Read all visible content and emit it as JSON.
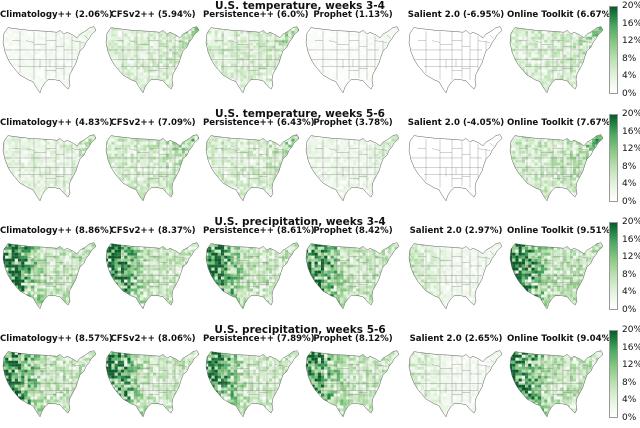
{
  "colors": {
    "low": "#ffffff",
    "high": "#0b5a2a",
    "border": "#7a7a7a"
  },
  "colorbar": {
    "ticks": [
      "20%",
      "16%",
      "12%",
      "8%",
      "4%",
      "0%"
    ]
  },
  "chart_data": [
    {
      "type": "heatmap",
      "title": "U.S. temperature,  weeks 3-4",
      "panels": [
        {
          "label": "Climatology++ (2.06%)",
          "value": 2.06
        },
        {
          "label": "CFSv2++ (5.94%)",
          "value": 5.94
        },
        {
          "label": "Persistence++ (6.0%)",
          "value": 6.0
        },
        {
          "label": "Prophet (1.13%)",
          "value": 1.13
        },
        {
          "label": "Salient 2.0 (-6.95%)",
          "value": -6.95
        },
        {
          "label": "Online Toolkit (6.67%)",
          "value": 6.67
        }
      ],
      "colorbar_range": [
        0,
        20
      ]
    },
    {
      "type": "heatmap",
      "title": "U.S. temperature,  weeks 5-6",
      "panels": [
        {
          "label": "Climatology++ (4.83%)",
          "value": 4.83
        },
        {
          "label": "CFSv2++ (7.09%)",
          "value": 7.09
        },
        {
          "label": "Persistence++ (6.43%)",
          "value": 6.43
        },
        {
          "label": "Prophet (3.78%)",
          "value": 3.78
        },
        {
          "label": "Salient 2.0 (-4.05%)",
          "value": -4.05
        },
        {
          "label": "Online Toolkit (7.67%)",
          "value": 7.67
        }
      ],
      "colorbar_range": [
        0,
        20
      ]
    },
    {
      "type": "heatmap",
      "title": "U.S. precipitation,  weeks 3-4",
      "panels": [
        {
          "label": "Climatology++ (8.86%)",
          "value": 8.86
        },
        {
          "label": "CFSv2++ (8.37%)",
          "value": 8.37
        },
        {
          "label": "Persistence++ (8.61%)",
          "value": 8.61
        },
        {
          "label": "Prophet (8.42%)",
          "value": 8.42
        },
        {
          "label": "Salient 2.0 (2.97%)",
          "value": 2.97
        },
        {
          "label": "Online Toolkit (9.51%)",
          "value": 9.51
        }
      ],
      "colorbar_range": [
        0,
        20
      ]
    },
    {
      "type": "heatmap",
      "title": "U.S. precipitation,  weeks 5-6",
      "panels": [
        {
          "label": "Climatology++ (8.57%)",
          "value": 8.57
        },
        {
          "label": "CFSv2++ (8.06%)",
          "value": 8.06
        },
        {
          "label": "Persistence++ (7.89%)",
          "value": 7.89
        },
        {
          "label": "Prophet (8.12%)",
          "value": 8.12
        },
        {
          "label": "Salient 2.0 (2.65%)",
          "value": 2.65
        },
        {
          "label": "Online Toolkit (9.04%)",
          "value": 9.04
        }
      ],
      "colorbar_range": [
        0,
        20
      ]
    }
  ]
}
